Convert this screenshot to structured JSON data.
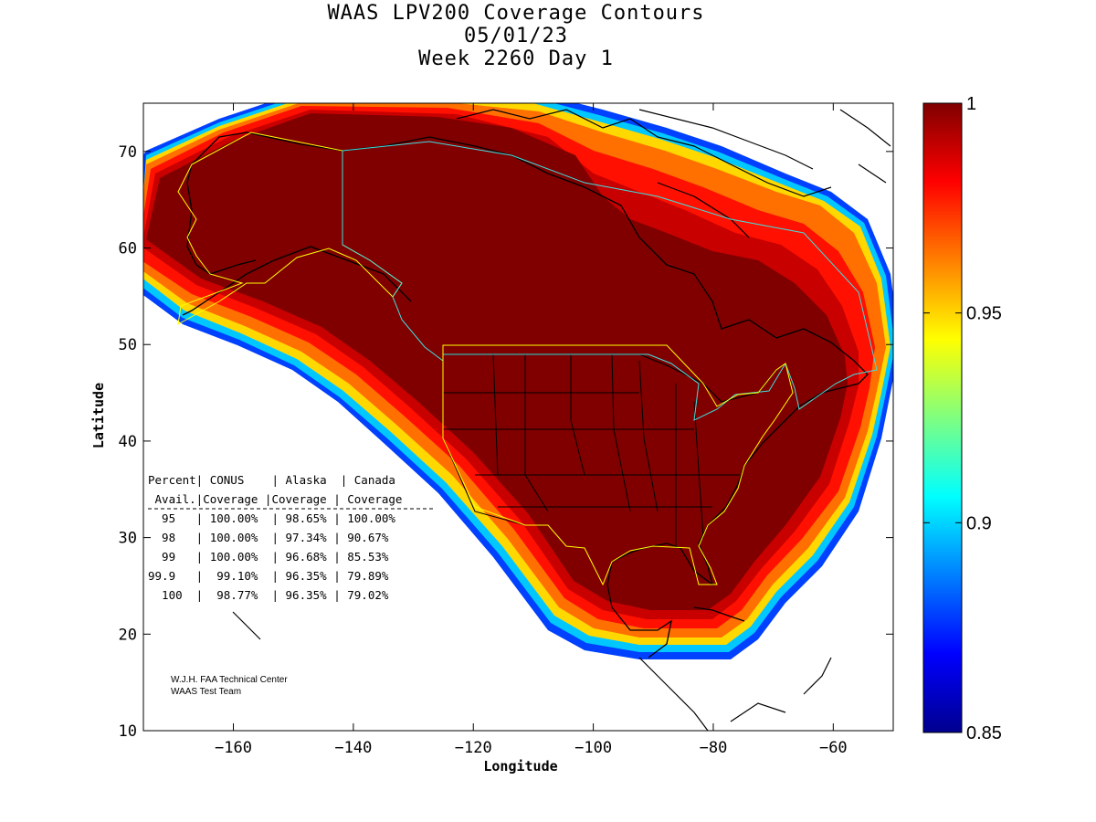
{
  "title": {
    "line1": "WAAS LPV200 Coverage Contours",
    "line2": "05/01/23",
    "line3": "Week 2260 Day 1"
  },
  "axes": {
    "xlabel": "Longitude",
    "ylabel": "Latitude",
    "xlim": [
      -175,
      -50
    ],
    "ylim": [
      10,
      75
    ],
    "xticks": [
      -160,
      -140,
      -120,
      -100,
      -80,
      -60
    ],
    "yticks": [
      10,
      20,
      30,
      40,
      50,
      60,
      70
    ]
  },
  "colorbar": {
    "min": 0.85,
    "max": 1,
    "ticks": [
      "1",
      "0.95",
      "0.9",
      "0.85"
    ],
    "tick_values": [
      1,
      0.95,
      0.9,
      0.85
    ]
  },
  "table": {
    "header1": [
      "Percent",
      "CONUS",
      "Alaska",
      "Canada"
    ],
    "header2": [
      "Avail.",
      "Coverage",
      "Coverage",
      "Coverage"
    ],
    "rows": [
      [
        "95",
        "100.00%",
        "98.65%",
        "100.00%"
      ],
      [
        "98",
        "100.00%",
        "97.34%",
        "90.67%"
      ],
      [
        "99",
        "100.00%",
        "96.68%",
        "85.53%"
      ],
      [
        "99.9",
        "99.10%",
        "96.35%",
        "79.89%"
      ],
      [
        "100",
        "98.77%",
        "96.35%",
        "79.02%"
      ]
    ]
  },
  "credit": {
    "line1": "W.J.H. FAA Technical Center",
    "line2": "WAAS Test Team"
  },
  "colors": {
    "full": "#800000",
    "high": "#c00000",
    "mid_red": "#ff1000",
    "orange": "#ff7000",
    "yellow": "#ffe000",
    "cyan": "#00d0ff",
    "blue": "#0040ff"
  }
}
